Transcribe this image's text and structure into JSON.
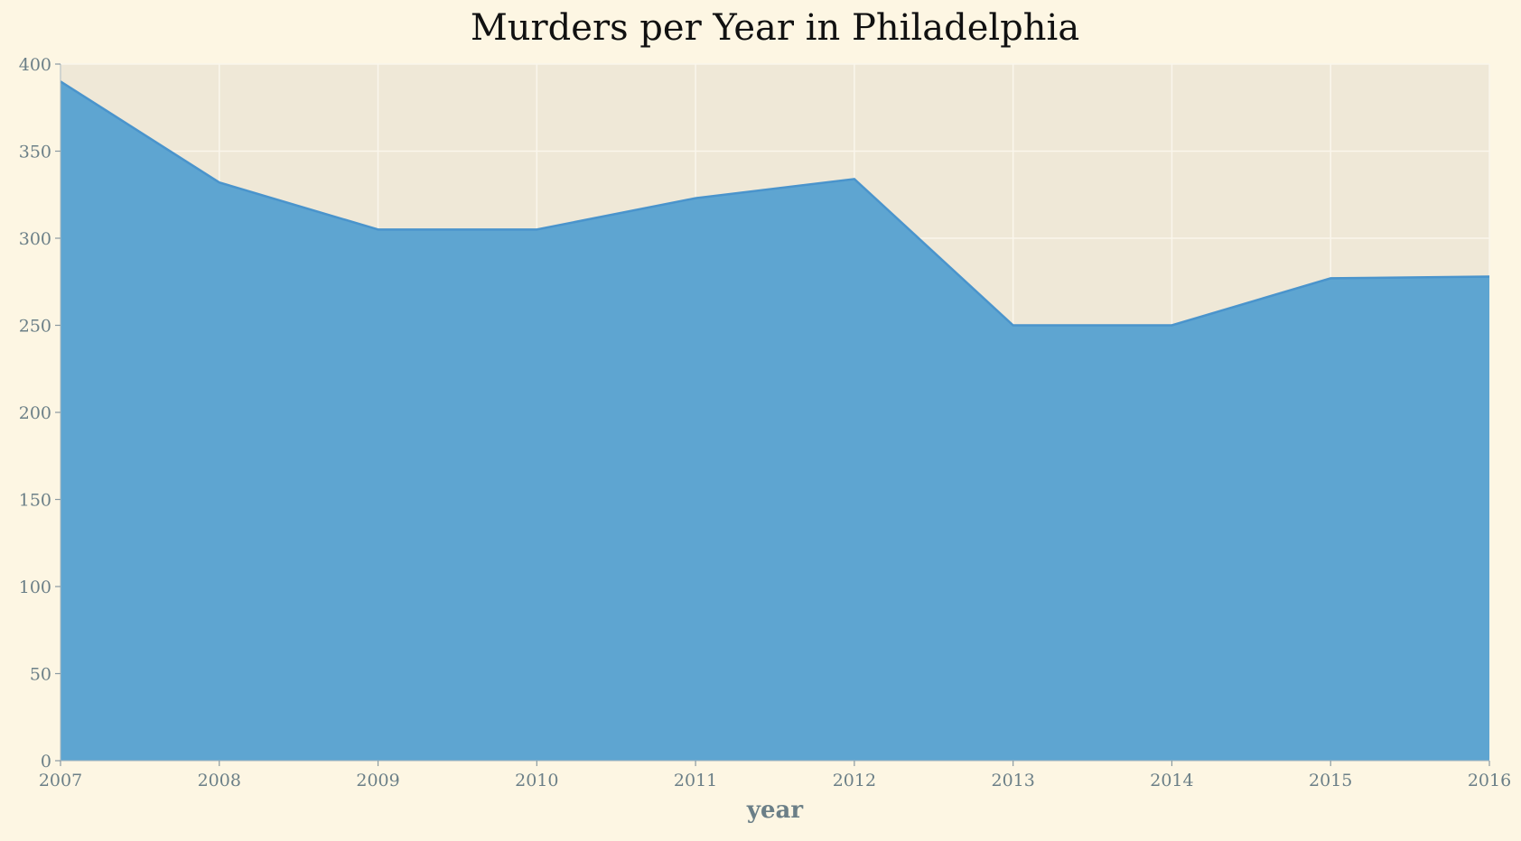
{
  "chart_data": {
    "type": "area",
    "title": "Murders per Year in Philadelphia",
    "xlabel": "year",
    "ylabel": "",
    "x": [
      2007,
      2008,
      2009,
      2010,
      2011,
      2012,
      2013,
      2014,
      2015,
      2016
    ],
    "series": [
      {
        "values": [
          390,
          332,
          305,
          305,
          323,
          334,
          250,
          250,
          277,
          278
        ]
      }
    ],
    "xlim": [
      2007,
      2016
    ],
    "ylim": [
      0,
      400
    ],
    "yticks": [
      0,
      50,
      100,
      150,
      200,
      250,
      300,
      350,
      400
    ],
    "xticks": [
      2007,
      2008,
      2009,
      2010,
      2011,
      2012,
      2013,
      2014,
      2015,
      2016
    ],
    "grid": true,
    "legend": "none",
    "colors": {
      "background": "#fdf6e3",
      "plot_background": "#efe8d7",
      "area_fill": "#5ba3d0",
      "line": "#4a94cc",
      "grid": "#faf6ec",
      "tick_text": "#6b7f87",
      "title_text": "#111111"
    }
  }
}
